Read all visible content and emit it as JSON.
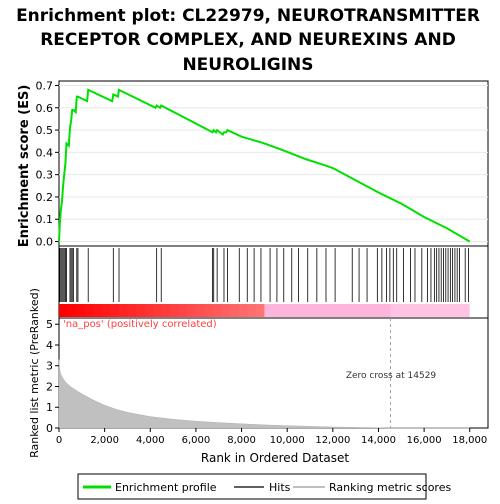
{
  "title": "Enrichment plot: CL22979, NEUROTRANSMITTER RECEPTOR COMPLEX, AND NEUREXINS AND NEUROLIGINS",
  "title_lines": [
    "Enrichment plot: CL22979, NEUROTRANSMITTER",
    "RECEPTOR COMPLEX, AND NEUREXINS AND",
    "NEUROLIGINS"
  ],
  "colors": {
    "enrichment_line": "#00e000",
    "hits": "#000000",
    "metric_fill": "#c0c0c0",
    "pos_band": "#ff0000",
    "neg_band": "#ff80c0",
    "zero_line": "#a0a0a0",
    "pos_label": "#ff4040"
  },
  "chart_data": [
    {
      "type": "line",
      "panel": "enrichment-profile",
      "ylabel": "Enrichment score (ES)",
      "yticks": [
        "0.0",
        "0.1",
        "0.2",
        "0.3",
        "0.4",
        "0.5",
        "0.6",
        "0.7"
      ],
      "ylim": [
        -0.02,
        0.72
      ],
      "xlim": [
        0,
        18800
      ],
      "grid": true,
      "series": [
        {
          "name": "Enrichment profile",
          "x": [
            0,
            30,
            80,
            130,
            180,
            230,
            280,
            330,
            430,
            480,
            530,
            580,
            630,
            730,
            780,
            830,
            1230,
            1280,
            2330,
            2380,
            2580,
            2630,
            4230,
            4280,
            4430,
            4480,
            6730,
            6780,
            6880,
            6930,
            7180,
            7230,
            7330,
            7380,
            8000,
            9000,
            9800,
            10300,
            10800,
            11700,
            12000,
            14000,
            15000,
            16000,
            17000,
            18000
          ],
          "y": [
            0.0,
            0.07,
            0.14,
            0.18,
            0.25,
            0.3,
            0.35,
            0.44,
            0.43,
            0.51,
            0.54,
            0.59,
            0.59,
            0.58,
            0.65,
            0.65,
            0.63,
            0.68,
            0.63,
            0.66,
            0.65,
            0.68,
            0.6,
            0.61,
            0.6,
            0.61,
            0.49,
            0.5,
            0.49,
            0.5,
            0.48,
            0.49,
            0.49,
            0.5,
            0.47,
            0.44,
            0.41,
            0.39,
            0.37,
            0.34,
            0.33,
            0.22,
            0.17,
            0.11,
            0.06,
            0.0
          ]
        }
      ]
    },
    {
      "type": "scatter",
      "panel": "hits",
      "legend_label": "Hits",
      "hits": [
        30,
        80,
        130,
        180,
        230,
        280,
        330,
        480,
        530,
        580,
        630,
        780,
        830,
        1280,
        2380,
        2630,
        4280,
        4480,
        6730,
        6780,
        6930,
        7230,
        7380,
        7900,
        8250,
        8550,
        8850,
        9250,
        9550,
        9850,
        10200,
        10500,
        10900,
        11300,
        11700,
        12100,
        12850,
        13150,
        13500,
        13950,
        14150,
        14350,
        14500,
        14650,
        14800,
        15100,
        15400,
        15600,
        15900,
        16150,
        16300,
        16450,
        16550,
        16650,
        16750,
        16850,
        16950,
        17050,
        17150,
        17250,
        17350,
        17450,
        17550,
        17800,
        17950
      ],
      "band": {
        "pos_end": 9000,
        "zero_cross": 14529,
        "end": 18000
      }
    },
    {
      "type": "area",
      "panel": "ranked-list-metric",
      "ylabel": "Ranked list metric (PreRanked)",
      "xlabel": "Rank in Ordered Dataset",
      "yticks": [
        "0",
        "1",
        "2",
        "3",
        "4",
        "5"
      ],
      "xticks": [
        "0",
        "2,000",
        "4,000",
        "6,000",
        "8,000",
        "10,000",
        "12,000",
        "14,000",
        "16,000",
        "18,000"
      ],
      "ylim": [
        0,
        5.3
      ],
      "xlim": [
        0,
        18800
      ],
      "x": [
        0,
        20,
        60,
        120,
        200,
        300,
        500,
        700,
        1000,
        1500,
        2000,
        2500,
        3000,
        4000,
        5000,
        6000,
        7000,
        8000,
        9000,
        10000,
        12000,
        14529,
        18000
      ],
      "values": [
        3.3,
        2.9,
        2.65,
        2.5,
        2.35,
        2.2,
        2.0,
        1.85,
        1.65,
        1.35,
        1.1,
        0.9,
        0.75,
        0.55,
        0.42,
        0.33,
        0.26,
        0.2,
        0.15,
        0.11,
        0.05,
        0.0,
        0.0
      ],
      "pos_label": "'na_pos' (positively correlated)",
      "zero_cross_label": "Zero cross at 14529",
      "zero_cross": 14529
    }
  ],
  "legend": {
    "items": [
      {
        "label": "Enrichment profile",
        "color": "#00e000"
      },
      {
        "label": "Hits",
        "color": "#000000"
      },
      {
        "label": "Ranking metric scores",
        "color": "#c0c0c0"
      }
    ]
  }
}
